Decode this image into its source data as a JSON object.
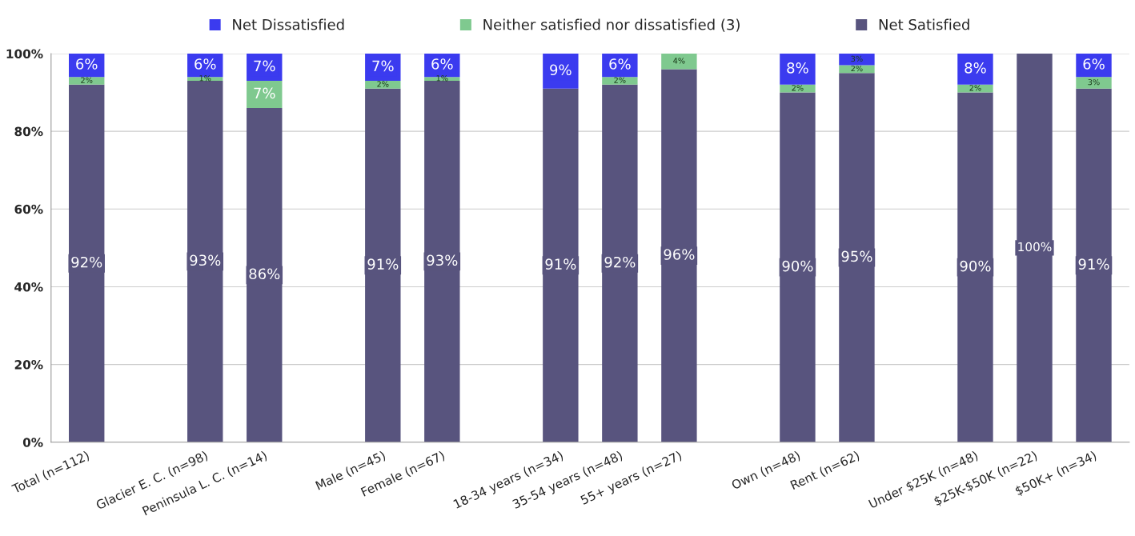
{
  "chart_data": {
    "type": "bar",
    "stacked": true,
    "categories": [
      "Total (n=112)",
      null,
      "Glacier E. C. (n=98)",
      "Peninsula L. C. (n=14)",
      null,
      "Male (n=45)",
      "Female (n=67)",
      null,
      "18-34 years (n=34)",
      "35-54 years (n=48)",
      "55+ years (n=27)",
      null,
      "Own (n=48)",
      "Rent (n=62)",
      null,
      "Under $25K (n=48)",
      "$25K-$50K (n=22)",
      "$50K+ (n=34)"
    ],
    "series": [
      {
        "name": "Net Satisfied",
        "color": "#58547e",
        "values": [
          92,
          null,
          93,
          86,
          null,
          91,
          93,
          null,
          91,
          92,
          96,
          null,
          90,
          95,
          null,
          90,
          100,
          91
        ],
        "value_labels": [
          "92%",
          null,
          "93%",
          "86%",
          null,
          "91%",
          "93%",
          null,
          "91%",
          "92%",
          "96%",
          null,
          "90%",
          "95%",
          null,
          "90%",
          "100%",
          "91%"
        ]
      },
      {
        "name": "Neither satisfied nor dissatisfied (3)",
        "color": "#7fc98f",
        "values": [
          2,
          null,
          1,
          7,
          null,
          2,
          1,
          null,
          0,
          2,
          4,
          null,
          2,
          2,
          null,
          2,
          0,
          3
        ],
        "value_labels": [
          "2%",
          null,
          "1%",
          "7%",
          null,
          "2%",
          "1%",
          null,
          null,
          "2%",
          "4%",
          null,
          "2%",
          "2%",
          null,
          "2%",
          null,
          "3%"
        ]
      },
      {
        "name": "Net Dissatisfied",
        "color": "#3b3bef",
        "values": [
          6,
          null,
          6,
          7,
          null,
          7,
          6,
          null,
          9,
          6,
          0,
          null,
          8,
          3,
          null,
          8,
          0,
          6
        ],
        "value_labels": [
          "6%",
          null,
          "6%",
          "7%",
          null,
          "7%",
          "6%",
          null,
          "9%",
          "6%",
          null,
          null,
          "8%",
          "3%",
          null,
          "8%",
          null,
          "6%"
        ]
      }
    ],
    "ylim": [
      0,
      100
    ],
    "yticks": [
      {
        "value": 0,
        "label": "0%"
      },
      {
        "value": 20,
        "label": "20%"
      },
      {
        "value": 40,
        "label": "40%"
      },
      {
        "value": 60,
        "label": "60%"
      },
      {
        "value": 80,
        "label": "80%"
      },
      {
        "value": 100,
        "label": "100%"
      }
    ],
    "grid": "y",
    "legend": "top"
  }
}
